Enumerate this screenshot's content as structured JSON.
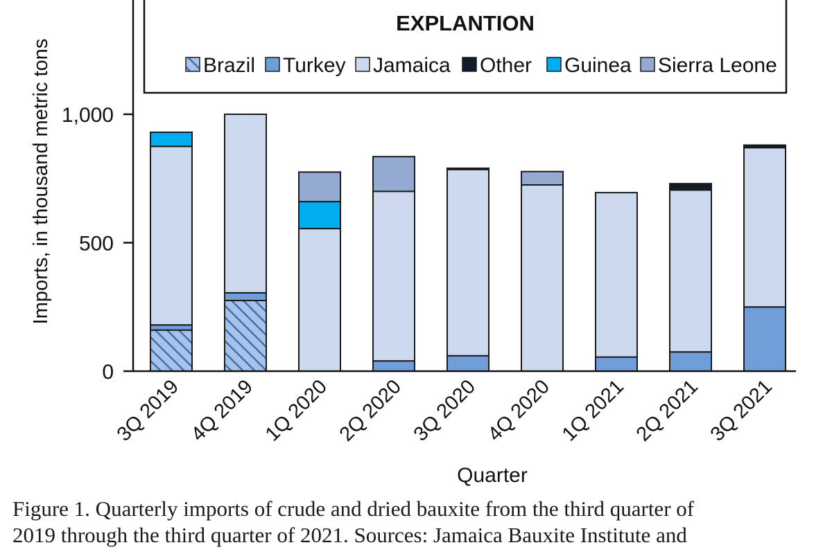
{
  "chart_data": {
    "type": "bar",
    "stacked": true,
    "xlabel": "Quarter",
    "ylabel": "Imports, in thousand metric tons",
    "ylim": [
      0,
      1000
    ],
    "yticks": [
      "0",
      "500",
      "1,000"
    ],
    "ytick_values": [
      0,
      500,
      1000
    ],
    "legend_title": "EXPLANTION",
    "legend_position": "top",
    "grid": false,
    "categories": [
      "3Q 2019",
      "4Q 2019",
      "1Q 2020",
      "2Q 2020",
      "3Q 2020",
      "4Q 2020",
      "1Q 2021",
      "2Q 2021",
      "3Q 2021"
    ],
    "series": [
      {
        "name": "Brazil",
        "color": "#8fb2e0",
        "pattern": "hatch",
        "values": [
          160,
          275,
          0,
          0,
          0,
          0,
          0,
          0,
          0
        ]
      },
      {
        "name": "Turkey",
        "color": "#6f9ed8",
        "values": [
          20,
          30,
          0,
          40,
          60,
          0,
          55,
          75,
          250
        ]
      },
      {
        "name": "Jamaica",
        "color": "#cdd9ef",
        "values": [
          695,
          695,
          555,
          660,
          725,
          725,
          640,
          630,
          620
        ]
      },
      {
        "name": "Other",
        "color": "#0d1b2a",
        "values": [
          0,
          0,
          0,
          0,
          0,
          0,
          0,
          20,
          10
        ]
      },
      {
        "name": "Guinea",
        "color": "#00adee",
        "values": [
          55,
          0,
          105,
          0,
          0,
          0,
          0,
          0,
          0
        ]
      },
      {
        "name": "Sierra Leone",
        "color": "#94aad3",
        "values": [
          0,
          0,
          115,
          135,
          5,
          52,
          0,
          5,
          0
        ]
      }
    ]
  },
  "caption": {
    "line1": "Figure 1. Quarterly imports of crude and dried bauxite from the third quarter of",
    "line2": "2019 through the third quarter of 2021. Sources: Jamaica Bauxite Institute and"
  }
}
